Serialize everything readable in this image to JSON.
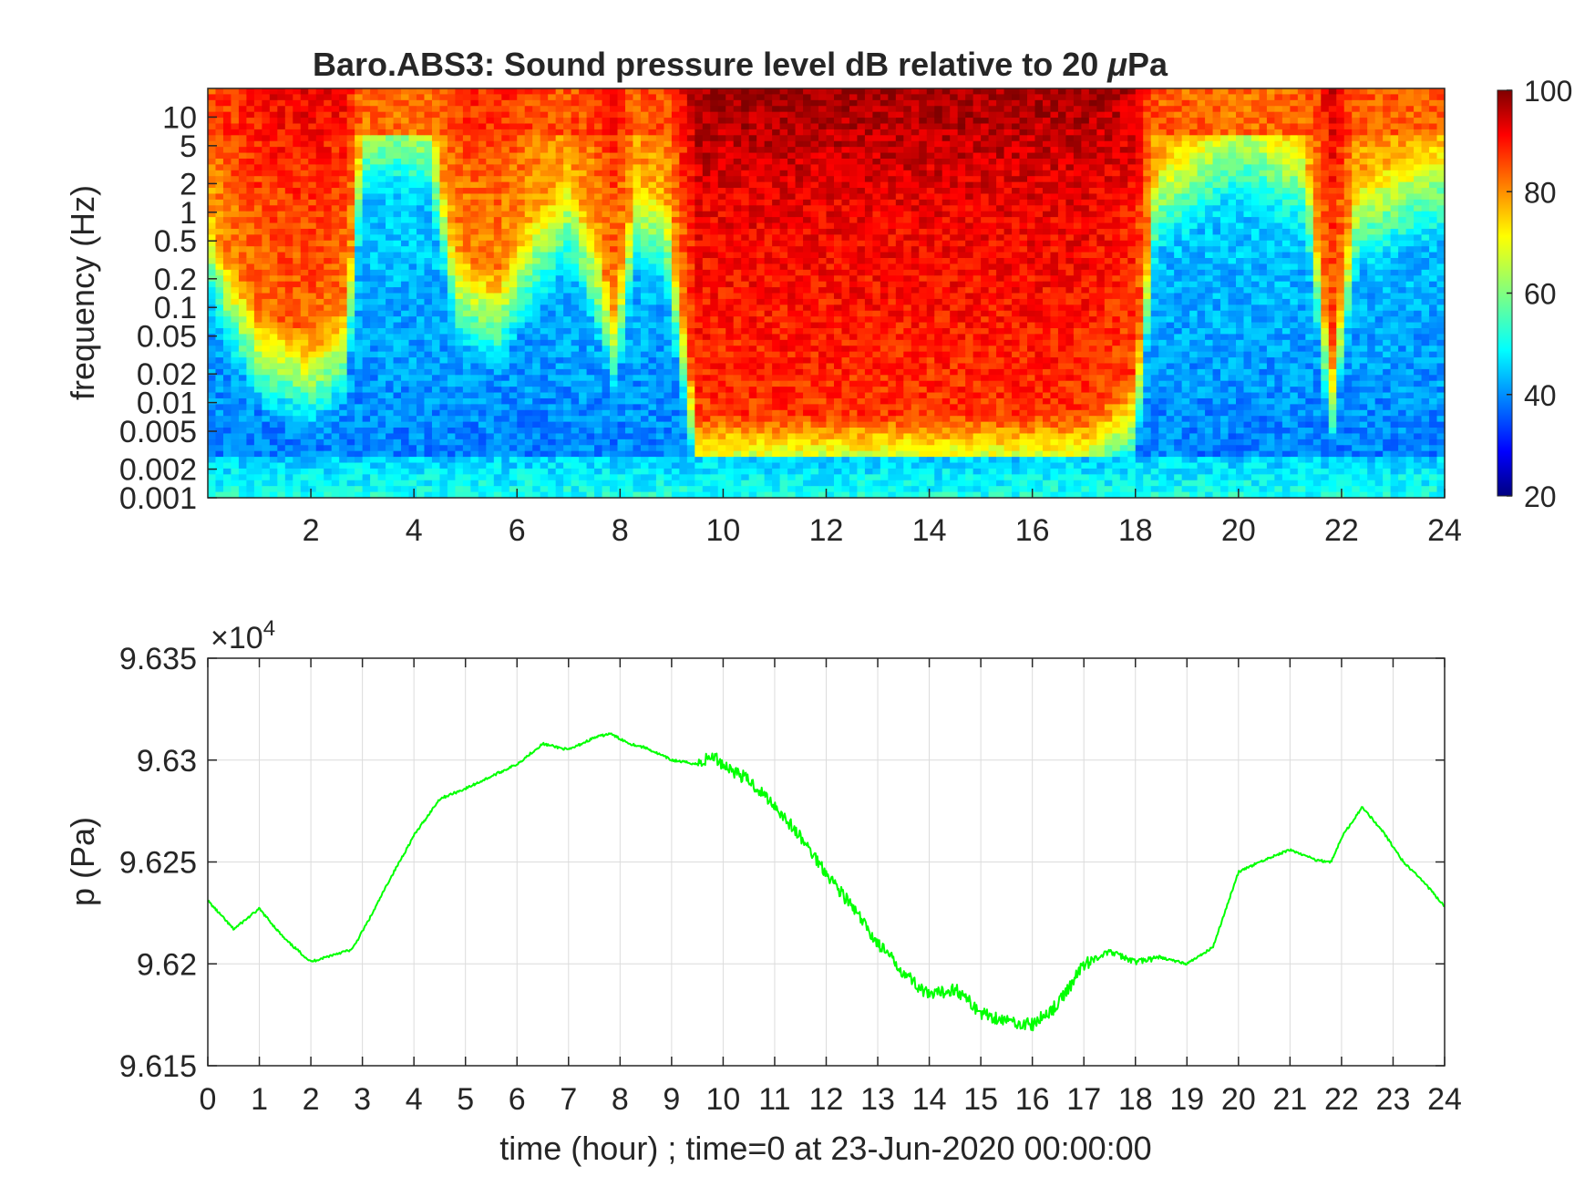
{
  "chart_data": [
    {
      "type": "heatmap",
      "title_prefix": "Baro.ABS3: Sound pressure level dB relative to 20 ",
      "title_mu": "μ",
      "title_suffix": "Pa",
      "ylabel": "frequency (Hz)",
      "xlabel": "",
      "x_ticks": [
        "2",
        "4",
        "6",
        "8",
        "10",
        "12",
        "14",
        "16",
        "18",
        "20",
        "22",
        "24"
      ],
      "y_ticks": [
        "10",
        "5",
        "2",
        "1",
        "0.5",
        "0.2",
        "0.1",
        "0.05",
        "0.02",
        "0.01",
        "0.005",
        "0.002",
        "0.001"
      ],
      "xlim": [
        0,
        24
      ],
      "ylim_hz": [
        0.001,
        20
      ],
      "y_scale": "log",
      "colormap": "jet",
      "colorbar": {
        "ticks": [
          "100",
          "80",
          "60",
          "40",
          "20"
        ],
        "range": [
          20,
          100
        ]
      },
      "hour_activity": [
        [
          0,
          0.42
        ],
        [
          0.3,
          0.55
        ],
        [
          1.0,
          0.72
        ],
        [
          2.0,
          0.78
        ],
        [
          2.7,
          0.7
        ],
        [
          3.0,
          0.15
        ],
        [
          3.6,
          0.12
        ],
        [
          4.3,
          0.15
        ],
        [
          4.8,
          0.55
        ],
        [
          5.6,
          0.62
        ],
        [
          6.3,
          0.45
        ],
        [
          7.0,
          0.35
        ],
        [
          7.5,
          0.5
        ],
        [
          7.9,
          0.7
        ],
        [
          8.3,
          0.35
        ],
        [
          8.9,
          0.4
        ],
        [
          9.5,
          1.0
        ],
        [
          12.0,
          1.0
        ],
        [
          15.0,
          1.0
        ],
        [
          17.0,
          1.0
        ],
        [
          18.0,
          0.9
        ],
        [
          18.4,
          0.3
        ],
        [
          20.0,
          0.15
        ],
        [
          21.3,
          0.25
        ],
        [
          21.8,
          0.85
        ],
        [
          22.3,
          0.35
        ],
        [
          23.0,
          0.3
        ],
        [
          24.0,
          0.25
        ]
      ]
    },
    {
      "type": "line",
      "xlabel": "time (hour) ; time=0 at 23-Jun-2020 00:00:00",
      "ylabel": "p (Pa)",
      "exponent_base": "×10",
      "exponent_power": "4",
      "x_ticks": [
        "0",
        "1",
        "2",
        "3",
        "4",
        "5",
        "6",
        "7",
        "8",
        "9",
        "10",
        "11",
        "12",
        "13",
        "14",
        "15",
        "16",
        "17",
        "18",
        "19",
        "20",
        "21",
        "22",
        "23",
        "24"
      ],
      "y_ticks": [
        "9.635",
        "9.63",
        "9.625",
        "9.62",
        "9.615"
      ],
      "xlim": [
        0,
        24
      ],
      "ylim": [
        96150,
        96350
      ],
      "grid": true,
      "color": "#00ff00",
      "series": [
        {
          "x": [
            0,
            0.5,
            1.0,
            1.5,
            2.0,
            2.5,
            2.8,
            3.2,
            3.5,
            4.0,
            4.5,
            5.0,
            5.5,
            6.0,
            6.5,
            7.0,
            7.5,
            7.8,
            8.2,
            8.5,
            9.0,
            9.5,
            9.8,
            10.0,
            10.5,
            11.0,
            11.5,
            12.0,
            12.5,
            13.0,
            13.5,
            14.0,
            14.5,
            15.0,
            15.5,
            16.0,
            16.5,
            17.0,
            17.5,
            18.0,
            18.5,
            19.0,
            19.5,
            20.0,
            20.5,
            21.0,
            21.5,
            21.8,
            22.0,
            22.4,
            22.8,
            23.2,
            23.6,
            24.0
          ],
          "y": [
            96231,
            96217,
            96227,
            96212,
            96201,
            96205,
            96207,
            96225,
            96240,
            96263,
            96281,
            96286,
            96292,
            96298,
            96308,
            96305,
            96311,
            96313,
            96308,
            96306,
            96300,
            96298,
            96302,
            96298,
            96290,
            96278,
            96262,
            96245,
            96228,
            96210,
            96196,
            96184,
            96188,
            96176,
            96172,
            96170,
            96180,
            96200,
            96206,
            96201,
            96203,
            96200,
            96208,
            96245,
            96251,
            96256,
            96251,
            96250,
            96262,
            96277,
            96265,
            96250,
            96240,
            96228
          ]
        }
      ]
    }
  ]
}
